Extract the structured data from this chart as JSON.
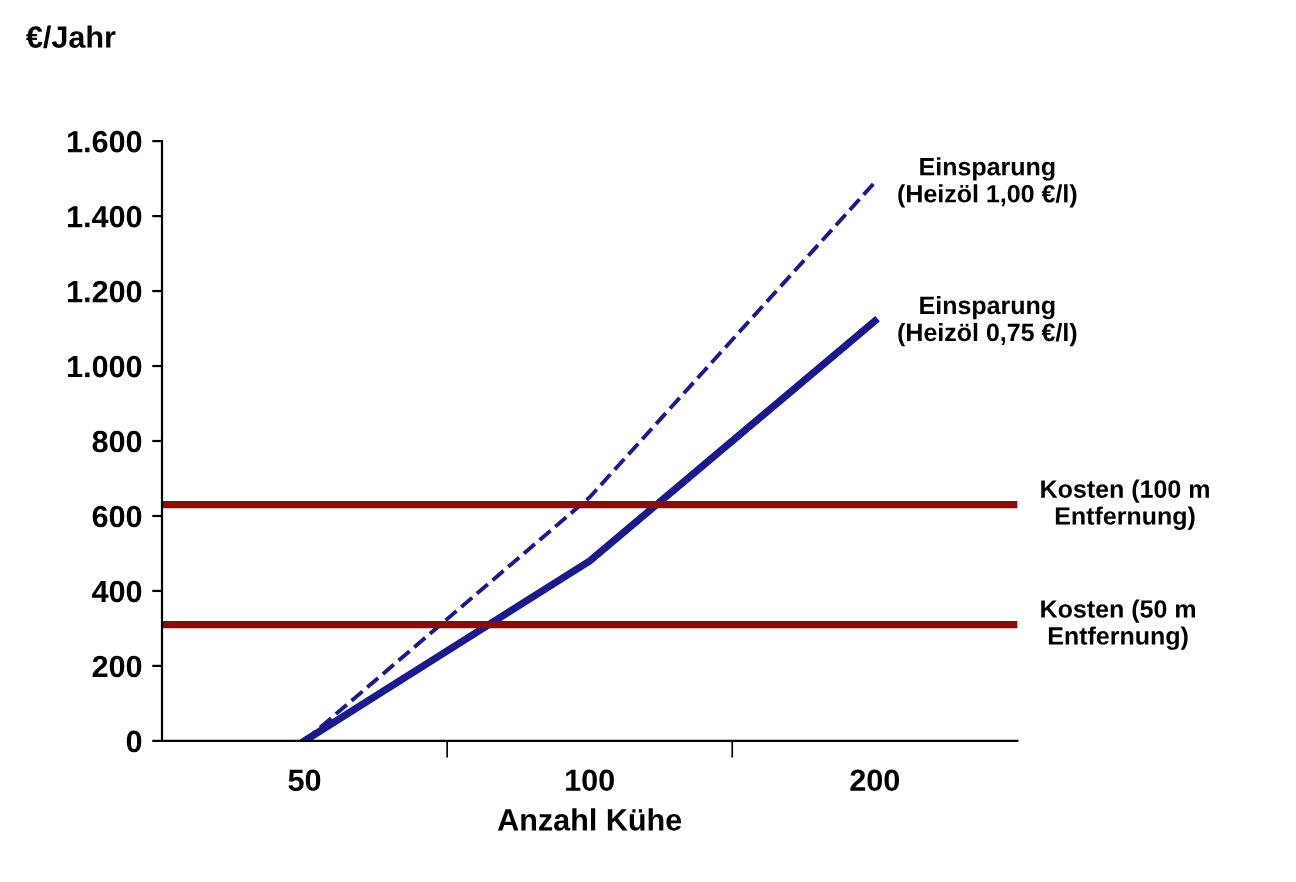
{
  "chart_data": {
    "type": "line",
    "ylabel": "€/Jahr",
    "xlabel": "Anzahl Kühe",
    "categories": [
      "50",
      "100",
      "200"
    ],
    "series": [
      {
        "name": "Einsparung\n(Heizöl 1,00 €/l)",
        "color": "#1a1a8c",
        "values": [
          0,
          650,
          1490
        ],
        "line_style": "dashed"
      },
      {
        "name": "Einsparung\n(Heizöl 0,75 €/l)",
        "color": "#1a1a8c",
        "values": [
          0,
          480,
          1120
        ],
        "line_style": "solid"
      }
    ],
    "ref_lines": [
      {
        "axis": "y",
        "value": 630,
        "label": "Kosten (100 m\nEntfernung)",
        "color": "#8b0a0a"
      },
      {
        "axis": "y",
        "value": 310,
        "label": "Kosten (50 m\nEntfernung)",
        "color": "#8b0a0a"
      }
    ],
    "ylim": [
      0,
      1600
    ],
    "yticks": [
      {
        "value": 0,
        "label": "0"
      },
      {
        "value": 200,
        "label": "200"
      },
      {
        "value": 400,
        "label": "400"
      },
      {
        "value": 600,
        "label": "600"
      },
      {
        "value": 800,
        "label": "800"
      },
      {
        "value": 1000,
        "label": "1.000"
      },
      {
        "value": 1200,
        "label": "1.200"
      },
      {
        "value": 1400,
        "label": "1.400"
      },
      {
        "value": 1600,
        "label": "1.600"
      }
    ],
    "grid": false,
    "legend": false
  }
}
